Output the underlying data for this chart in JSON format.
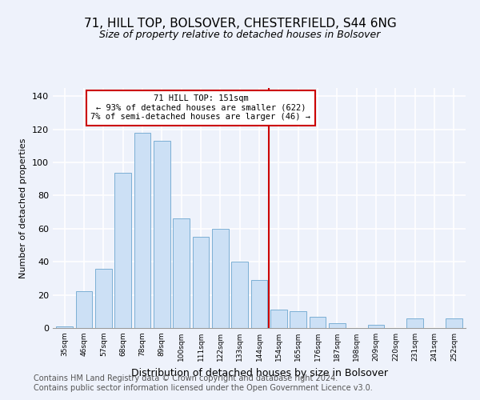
{
  "title": "71, HILL TOP, BOLSOVER, CHESTERFIELD, S44 6NG",
  "subtitle": "Size of property relative to detached houses in Bolsover",
  "xlabel": "Distribution of detached houses by size in Bolsover",
  "ylabel": "Number of detached properties",
  "footer_line1": "Contains HM Land Registry data © Crown copyright and database right 2024.",
  "footer_line2": "Contains public sector information licensed under the Open Government Licence v3.0.",
  "bar_labels": [
    "35sqm",
    "46sqm",
    "57sqm",
    "68sqm",
    "78sqm",
    "89sqm",
    "100sqm",
    "111sqm",
    "122sqm",
    "133sqm",
    "144sqm",
    "154sqm",
    "165sqm",
    "176sqm",
    "187sqm",
    "198sqm",
    "209sqm",
    "220sqm",
    "231sqm",
    "241sqm",
    "252sqm"
  ],
  "bar_values": [
    1,
    22,
    36,
    94,
    118,
    113,
    66,
    55,
    60,
    40,
    29,
    11,
    10,
    7,
    3,
    0,
    2,
    0,
    6,
    0,
    6
  ],
  "bar_color": "#cce0f5",
  "bar_edge_color": "#7bafd4",
  "vline_index": 11,
  "vline_color": "#cc0000",
  "annotation_title": "71 HILL TOP: 151sqm",
  "annotation_line1": "← 93% of detached houses are smaller (622)",
  "annotation_line2": "7% of semi-detached houses are larger (46) →",
  "annotation_box_facecolor": "white",
  "annotation_box_edgecolor": "#cc0000",
  "ylim": [
    0,
    145
  ],
  "yticks": [
    0,
    20,
    40,
    60,
    80,
    100,
    120,
    140
  ],
  "background_color": "#eef2fb",
  "grid_color": "white",
  "title_fontsize": 11,
  "subtitle_fontsize": 9,
  "footer_fontsize": 7,
  "ylabel_fontsize": 8,
  "xlabel_fontsize": 9
}
